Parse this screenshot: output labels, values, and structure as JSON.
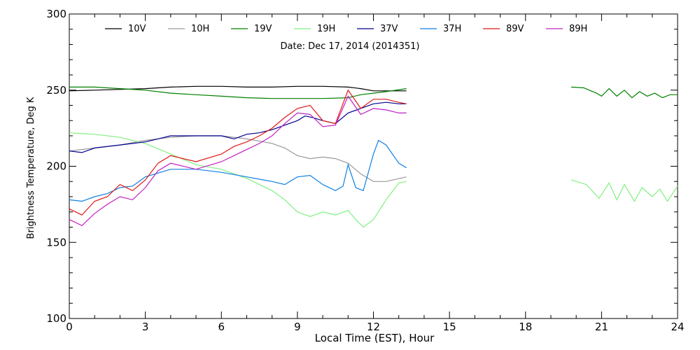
{
  "chart_data": {
    "type": "line",
    "title": "Date: Dec 17, 2014 (2014351)",
    "xlabel": "Local Time (EST), Hour",
    "ylabel": "Brightness Temperature, Deg K",
    "xlim": [
      0,
      24
    ],
    "ylim": [
      100,
      300
    ],
    "x_ticks": [
      "0",
      "3",
      "6",
      "9",
      "12",
      "15",
      "18",
      "21",
      "24"
    ],
    "y_ticks": [
      "100",
      "150",
      "200",
      "250",
      "300"
    ],
    "grid": false,
    "legend_position": "top",
    "series": [
      {
        "name": "10V",
        "color": "#000000",
        "points": [
          [
            0,
            249.5
          ],
          [
            1,
            250
          ],
          [
            2,
            250.5
          ],
          [
            3,
            251
          ],
          [
            4,
            252
          ],
          [
            5,
            252.5
          ],
          [
            6,
            252.5
          ],
          [
            7,
            252
          ],
          [
            8,
            252
          ],
          [
            9,
            252.5
          ],
          [
            10,
            252.5
          ],
          [
            11,
            252
          ],
          [
            11.5,
            251
          ],
          [
            12,
            249.5
          ],
          [
            12.5,
            249.5
          ],
          [
            13.3,
            249.5
          ]
        ]
      },
      {
        "name": "10H",
        "color": "#999999",
        "points": [
          [
            0,
            210
          ],
          [
            1,
            212
          ],
          [
            2,
            214
          ],
          [
            3,
            217
          ],
          [
            4,
            219
          ],
          [
            5,
            220
          ],
          [
            6,
            220
          ],
          [
            7,
            218
          ],
          [
            8,
            215
          ],
          [
            8.5,
            212
          ],
          [
            9,
            207
          ],
          [
            9.5,
            205
          ],
          [
            10,
            206
          ],
          [
            10.5,
            205
          ],
          [
            11,
            202
          ],
          [
            11.5,
            195
          ],
          [
            12,
            190
          ],
          [
            12.5,
            190
          ],
          [
            13.3,
            193
          ]
        ]
      },
      {
        "name": "19V",
        "color": "#008000",
        "points": [
          [
            0,
            252
          ],
          [
            1,
            252
          ],
          [
            2,
            251
          ],
          [
            3,
            250
          ],
          [
            4,
            248
          ],
          [
            5,
            247
          ],
          [
            6,
            246
          ],
          [
            7,
            245
          ],
          [
            8,
            244.5
          ],
          [
            9,
            244.5
          ],
          [
            10,
            244.5
          ],
          [
            11,
            245
          ],
          [
            11.5,
            247
          ],
          [
            12,
            248
          ],
          [
            12.5,
            249
          ],
          [
            13.3,
            251
          ]
        ]
      },
      {
        "name": "19V",
        "color": "#008000",
        "points": [
          [
            19.8,
            252
          ],
          [
            20.3,
            251.5
          ],
          [
            20.8,
            248
          ],
          [
            21,
            246
          ],
          [
            21.3,
            251
          ],
          [
            21.6,
            246
          ],
          [
            21.9,
            250
          ],
          [
            22.2,
            245
          ],
          [
            22.5,
            249
          ],
          [
            22.8,
            246
          ],
          [
            23.1,
            248
          ],
          [
            23.4,
            245
          ],
          [
            23.7,
            247
          ],
          [
            24,
            247
          ]
        ]
      },
      {
        "name": "19H",
        "color": "#80f080",
        "points": [
          [
            0,
            222
          ],
          [
            1,
            221
          ],
          [
            2,
            219
          ],
          [
            3,
            215
          ],
          [
            4,
            208
          ],
          [
            5,
            201
          ],
          [
            6,
            198
          ],
          [
            7,
            192
          ],
          [
            8,
            184
          ],
          [
            8.5,
            178
          ],
          [
            9,
            170
          ],
          [
            9.5,
            167
          ],
          [
            10,
            170
          ],
          [
            10.5,
            168
          ],
          [
            11,
            171
          ],
          [
            11.3,
            165
          ],
          [
            11.6,
            160
          ],
          [
            12,
            165
          ],
          [
            12.5,
            178
          ],
          [
            13,
            189
          ],
          [
            13.3,
            190
          ]
        ]
      },
      {
        "name": "19H",
        "color": "#80f080",
        "points": [
          [
            19.8,
            191
          ],
          [
            20.4,
            188
          ],
          [
            20.9,
            179
          ],
          [
            21.3,
            189
          ],
          [
            21.6,
            178
          ],
          [
            21.9,
            188
          ],
          [
            22.3,
            177
          ],
          [
            22.6,
            186
          ],
          [
            23,
            180
          ],
          [
            23.3,
            185
          ],
          [
            23.6,
            177
          ],
          [
            24,
            187
          ]
        ]
      },
      {
        "name": "37V",
        "color": "#000090",
        "points": [
          [
            0,
            210
          ],
          [
            0.5,
            209
          ],
          [
            1,
            212
          ],
          [
            2,
            214
          ],
          [
            3,
            216
          ],
          [
            3.5,
            218
          ],
          [
            4,
            220
          ],
          [
            5,
            220
          ],
          [
            6,
            220
          ],
          [
            6.5,
            218
          ],
          [
            7,
            221
          ],
          [
            7.5,
            222
          ],
          [
            8,
            224
          ],
          [
            8.5,
            227
          ],
          [
            9,
            230
          ],
          [
            9.3,
            233
          ],
          [
            9.6,
            232
          ],
          [
            10,
            230
          ],
          [
            10.5,
            228
          ],
          [
            11,
            235
          ],
          [
            11.5,
            238
          ],
          [
            12,
            241
          ],
          [
            12.5,
            242
          ],
          [
            13,
            241
          ],
          [
            13.3,
            241
          ]
        ]
      },
      {
        "name": "37H",
        "color": "#1080e0",
        "points": [
          [
            0,
            178
          ],
          [
            0.5,
            177
          ],
          [
            1,
            180
          ],
          [
            1.5,
            182
          ],
          [
            2,
            186
          ],
          [
            2.5,
            187
          ],
          [
            3,
            193
          ],
          [
            4,
            198
          ],
          [
            5,
            198
          ],
          [
            6,
            196
          ],
          [
            7,
            193
          ],
          [
            8,
            190
          ],
          [
            8.5,
            188
          ],
          [
            9,
            193
          ],
          [
            9.5,
            194
          ],
          [
            10,
            188
          ],
          [
            10.5,
            184
          ],
          [
            10.8,
            187
          ],
          [
            11,
            201
          ],
          [
            11.3,
            186
          ],
          [
            11.6,
            184
          ],
          [
            12,
            208
          ],
          [
            12.2,
            217
          ],
          [
            12.5,
            214
          ],
          [
            13,
            202
          ],
          [
            13.3,
            199
          ]
        ]
      },
      {
        "name": "89V",
        "color": "#e01818",
        "points": [
          [
            0,
            172
          ],
          [
            0.5,
            168
          ],
          [
            1,
            177
          ],
          [
            1.5,
            180
          ],
          [
            2,
            188
          ],
          [
            2.5,
            184
          ],
          [
            3,
            191
          ],
          [
            3.5,
            202
          ],
          [
            4,
            207
          ],
          [
            5,
            203
          ],
          [
            6,
            208
          ],
          [
            6.5,
            213
          ],
          [
            7,
            216
          ],
          [
            7.5,
            220
          ],
          [
            8,
            225
          ],
          [
            8.5,
            232
          ],
          [
            9,
            238
          ],
          [
            9.5,
            240
          ],
          [
            10,
            230
          ],
          [
            10.5,
            228
          ],
          [
            11,
            250
          ],
          [
            11.5,
            238
          ],
          [
            12,
            244
          ],
          [
            12.5,
            244
          ],
          [
            13,
            242
          ],
          [
            13.3,
            241
          ]
        ]
      },
      {
        "name": "89H",
        "color": "#c020c0",
        "points": [
          [
            0,
            165
          ],
          [
            0.5,
            161
          ],
          [
            1,
            169
          ],
          [
            1.5,
            175
          ],
          [
            2,
            180
          ],
          [
            2.5,
            178
          ],
          [
            3,
            186
          ],
          [
            3.5,
            197
          ],
          [
            4,
            202
          ],
          [
            5,
            198
          ],
          [
            6,
            203
          ],
          [
            6.5,
            207
          ],
          [
            7,
            211
          ],
          [
            7.5,
            215
          ],
          [
            8,
            220
          ],
          [
            8.5,
            228
          ],
          [
            9,
            235
          ],
          [
            9.5,
            234
          ],
          [
            10,
            226
          ],
          [
            10.5,
            227
          ],
          [
            11,
            246
          ],
          [
            11.5,
            234
          ],
          [
            12,
            238
          ],
          [
            12.5,
            237
          ],
          [
            13,
            235
          ],
          [
            13.3,
            235
          ]
        ]
      }
    ]
  }
}
